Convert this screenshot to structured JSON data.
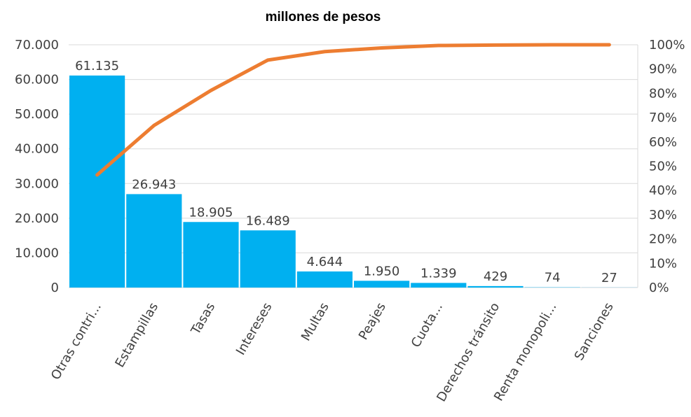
{
  "chart_data": {
    "type": "bar",
    "title": "millones de pesos",
    "categories": [
      "Otras contri...",
      "Estampillas",
      "Tasas",
      "Intereses",
      "Multas",
      "Peajes",
      "Cuota...",
      "Derechos tránsito",
      "Renta monopoli...",
      "Sanciones"
    ],
    "series": [
      {
        "type": "bar",
        "axis": "left",
        "color": "#00b0f0",
        "values": [
          61135,
          26943,
          18905,
          16489,
          4644,
          1950,
          1339,
          429,
          74,
          27
        ],
        "data_labels": [
          "61.135",
          "26.943",
          "18.905",
          "16.489",
          "4.644",
          "1.950",
          "1.339",
          "429",
          "74",
          "27"
        ]
      },
      {
        "type": "line",
        "axis": "right",
        "color": "#ed7d31",
        "values": [
          46.4,
          66.8,
          81.2,
          93.7,
          97.2,
          98.7,
          99.7,
          99.9,
          100.0,
          100.0
        ]
      }
    ],
    "y_left": {
      "min": 0,
      "max": 70000,
      "ticks": [
        0,
        10000,
        20000,
        30000,
        40000,
        50000,
        60000,
        70000
      ],
      "tick_labels": [
        "0",
        "10.000",
        "20.000",
        "30.000",
        "40.000",
        "50.000",
        "60.000",
        "70.000"
      ]
    },
    "y_right": {
      "min": 0,
      "max": 100,
      "ticks": [
        0,
        10,
        20,
        30,
        40,
        50,
        60,
        70,
        80,
        90,
        100
      ],
      "tick_labels": [
        "0%",
        "10%",
        "20%",
        "30%",
        "40%",
        "50%",
        "60%",
        "70%",
        "80%",
        "90%",
        "100%"
      ]
    },
    "xlabel": "",
    "ylabel": "",
    "grid": true,
    "legend": "none"
  }
}
